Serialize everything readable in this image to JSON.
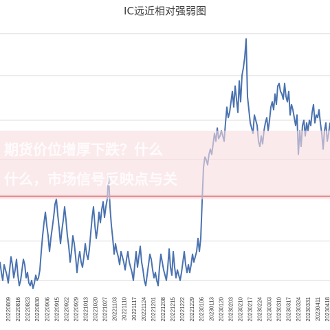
{
  "chart_data": {
    "type": "line",
    "title": "IC远近相对强弱图",
    "xlabel": "",
    "ylabel": "",
    "grid": "horizontal",
    "colors": {
      "series": "#4a72b0",
      "reference": "#c00000",
      "grid": "#d9d9d9",
      "overlay_band": "#f9dcdf"
    },
    "x_tick_labels": [
      "20220809",
      "20220816",
      "20220823",
      "20220830",
      "20220906",
      "20220915",
      "20220922",
      "20220929",
      "20221013",
      "20221020",
      "20221027",
      "20221103",
      "20221110",
      "20221117",
      "20221124",
      "20221201",
      "20221208",
      "20221215",
      "20221222",
      "20221229",
      "20230106",
      "20230113",
      "20230120",
      "20230203",
      "20230210",
      "20230217",
      "20230224",
      "20230303",
      "20230310",
      "20230317",
      "20230324",
      "20230331",
      "20230411",
      "20230418"
    ],
    "reference_line": {
      "label": "",
      "value": 0.37
    },
    "ylim": [
      0,
      1.0
    ],
    "series": [
      {
        "name": "",
        "values": [
          0.12,
          0.08,
          0.05,
          0.11,
          0.09,
          0.07,
          0.04,
          0.09,
          0.14,
          0.11,
          0.06,
          0.09,
          0.13,
          0.07,
          0.03,
          0.05,
          0.09,
          0.13,
          0.11,
          0.06,
          0.08,
          0.04,
          0.03,
          0.05,
          0.02,
          0.04,
          0.07,
          0.05,
          0.06,
          0.09,
          0.16,
          0.22,
          0.27,
          0.31,
          0.26,
          0.22,
          0.16,
          0.21,
          0.25,
          0.29,
          0.34,
          0.36,
          0.3,
          0.25,
          0.19,
          0.24,
          0.28,
          0.33,
          0.28,
          0.22,
          0.18,
          0.12,
          0.16,
          0.22,
          0.19,
          0.14,
          0.08,
          0.13,
          0.16,
          0.12,
          0.1,
          0.14,
          0.19,
          0.15,
          0.13,
          0.17,
          0.23,
          0.29,
          0.33,
          0.26,
          0.21,
          0.25,
          0.31,
          0.27,
          0.32,
          0.35,
          0.29,
          0.33,
          0.36,
          0.45,
          0.33,
          0.26,
          0.21,
          0.15,
          0.19,
          0.16,
          0.14,
          0.11,
          0.16,
          0.14,
          0.12,
          0.09,
          0.13,
          0.16,
          0.12,
          0.1,
          0.08,
          0.05,
          0.11,
          0.16,
          0.1,
          0.14,
          0.18,
          0.12,
          0.09,
          0.05,
          0.03,
          0.07,
          0.11,
          0.15,
          0.13,
          0.09,
          0.06,
          0.08,
          0.05,
          0.03,
          0.1,
          0.15,
          0.12,
          0.09,
          0.07,
          0.05,
          0.1,
          0.17,
          0.1,
          0.07,
          0.16,
          0.1,
          0.06,
          0.09,
          0.07,
          0.05,
          0.08,
          0.12,
          0.16,
          0.11,
          0.08,
          0.11,
          0.08,
          0.11,
          0.15,
          0.12,
          0.14,
          0.16,
          0.21,
          0.16,
          0.21,
          0.35,
          0.48,
          0.52,
          0.51,
          0.49,
          0.53,
          0.55,
          0.53,
          0.57,
          0.61,
          0.58,
          0.63,
          0.59,
          0.6,
          0.62,
          0.6,
          0.58,
          0.65,
          0.71,
          0.67,
          0.69,
          0.73,
          0.77,
          0.71,
          0.79,
          0.74,
          0.69,
          0.81,
          0.73,
          0.83,
          0.86,
          0.9,
          0.97,
          0.75,
          0.7,
          0.65,
          0.63,
          0.61,
          0.68,
          0.66,
          0.64,
          0.58,
          0.56,
          0.6,
          0.57,
          0.62,
          0.65,
          0.67,
          0.62,
          0.66,
          0.71,
          0.73,
          0.7,
          0.76,
          0.72,
          0.79,
          0.8,
          0.77,
          0.76,
          0.74,
          0.8,
          0.75,
          0.73,
          0.77,
          0.68,
          0.72,
          0.7,
          0.67,
          0.64,
          0.68,
          0.53,
          0.62,
          0.56,
          0.64,
          0.66,
          0.6,
          0.65,
          0.62,
          0.66,
          0.64,
          0.69,
          0.72,
          0.65,
          0.68,
          0.67,
          0.7,
          0.65,
          0.61,
          0.55,
          0.62,
          0.65,
          0.58,
          0.61,
          0.65
        ]
      }
    ]
  },
  "watermark": {
    "line1": "期货价位增厚下跌？什么",
    "line2": "什么，市场信号反映点与关"
  }
}
